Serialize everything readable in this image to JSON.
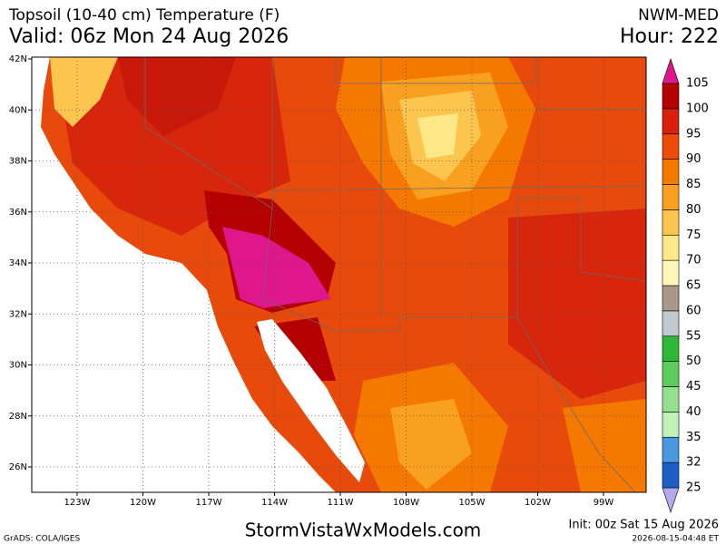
{
  "header": {
    "title": "Topsoil (10-40 cm) Temperature (F)",
    "valid": "Valid: 06z Mon 24 Aug 2026",
    "model": "NWM-MED",
    "hour": "Hour: 222"
  },
  "map": {
    "lat_labels": [
      "42N",
      "40N",
      "38N",
      "36N",
      "34N",
      "32N",
      "30N",
      "28N",
      "26N"
    ],
    "lon_labels": [
      "123W",
      "120W",
      "117W",
      "114W",
      "111W",
      "108W",
      "105W",
      "102W",
      "99W"
    ]
  },
  "colorbar": {
    "levels": [
      25,
      32,
      35,
      40,
      45,
      50,
      55,
      60,
      65,
      70,
      75,
      80,
      85,
      90,
      95,
      100,
      105
    ],
    "colors": [
      "#b4a8ee",
      "#1e5ec4",
      "#4a98e0",
      "#c0f2b8",
      "#94e08e",
      "#5cca5c",
      "#2eb83a",
      "#c2cad0",
      "#a8988a",
      "#fff6b8",
      "#fde888",
      "#fcc64e",
      "#f9a020",
      "#f57800",
      "#ee4a0a",
      "#d8200c",
      "#b40000",
      "#940000",
      "#e0168c"
    ]
  },
  "footer": {
    "grads": "GrADS: COLA/IGES",
    "site": "StormVistaWxModels.com",
    "init": "Init: 00z Sat 15 Aug 2026",
    "stamp": "2026-08-15-04:48 ET"
  }
}
